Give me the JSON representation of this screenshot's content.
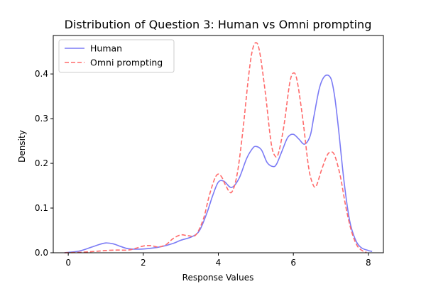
{
  "chart_data": {
    "type": "line",
    "title": "Distribution of Question 3: Human vs Omni prompting",
    "xlabel": "Response Values",
    "ylabel": "Density",
    "xlim": [
      -0.4,
      8.4
    ],
    "ylim": [
      0,
      0.486
    ],
    "xticks": [
      0,
      2,
      4,
      6,
      8
    ],
    "yticks": [
      0.0,
      0.1,
      0.2,
      0.3,
      0.4
    ],
    "ytick_labels": [
      "0.0",
      "0.1",
      "0.2",
      "0.3",
      "0.4"
    ],
    "grid": false,
    "legend_position": "upper-left",
    "series": [
      {
        "name": "Human",
        "color": "#7b7bf5",
        "style": "solid",
        "x": [
          -0.1,
          0.3,
          0.6,
          0.85,
          1.0,
          1.2,
          1.4,
          1.6,
          1.9,
          2.2,
          2.5,
          2.8,
          3.0,
          3.3,
          3.5,
          3.7,
          3.85,
          4.0,
          4.15,
          4.35,
          4.55,
          4.75,
          4.9,
          5.0,
          5.15,
          5.3,
          5.45,
          5.55,
          5.7,
          5.85,
          6.0,
          6.15,
          6.3,
          6.45,
          6.55,
          6.7,
          6.85,
          7.0,
          7.1,
          7.2,
          7.35,
          7.5,
          7.65,
          7.8,
          8.0,
          8.1
        ],
        "y": [
          0.0,
          0.004,
          0.012,
          0.019,
          0.022,
          0.02,
          0.014,
          0.009,
          0.008,
          0.01,
          0.014,
          0.021,
          0.028,
          0.036,
          0.05,
          0.09,
          0.128,
          0.158,
          0.16,
          0.146,
          0.166,
          0.21,
          0.232,
          0.238,
          0.23,
          0.202,
          0.193,
          0.198,
          0.228,
          0.258,
          0.265,
          0.254,
          0.243,
          0.262,
          0.306,
          0.37,
          0.396,
          0.39,
          0.35,
          0.28,
          0.16,
          0.072,
          0.03,
          0.012,
          0.005,
          0.003
        ]
      },
      {
        "name": "Omni prompting",
        "color": "#ff6b6b",
        "style": "dashed",
        "x": [
          -0.1,
          0.3,
          0.7,
          1.0,
          1.3,
          1.6,
          1.8,
          2.0,
          2.2,
          2.4,
          2.6,
          2.8,
          3.0,
          3.2,
          3.4,
          3.6,
          3.75,
          3.9,
          4.0,
          4.1,
          4.2,
          4.35,
          4.5,
          4.65,
          4.8,
          4.9,
          5.0,
          5.1,
          5.25,
          5.4,
          5.5,
          5.6,
          5.75,
          5.9,
          6.0,
          6.1,
          6.25,
          6.4,
          6.5,
          6.6,
          6.75,
          6.9,
          7.0,
          7.1,
          7.25,
          7.4,
          7.55,
          7.7,
          7.85,
          7.95
        ],
        "y": [
          0.0,
          0.001,
          0.003,
          0.005,
          0.006,
          0.006,
          0.01,
          0.015,
          0.016,
          0.013,
          0.018,
          0.032,
          0.04,
          0.038,
          0.04,
          0.075,
          0.125,
          0.165,
          0.176,
          0.168,
          0.15,
          0.135,
          0.175,
          0.27,
          0.39,
          0.45,
          0.47,
          0.45,
          0.36,
          0.25,
          0.218,
          0.222,
          0.285,
          0.378,
          0.402,
          0.385,
          0.3,
          0.195,
          0.158,
          0.148,
          0.185,
          0.218,
          0.225,
          0.218,
          0.172,
          0.102,
          0.048,
          0.016,
          0.004,
          0.001
        ]
      }
    ]
  }
}
